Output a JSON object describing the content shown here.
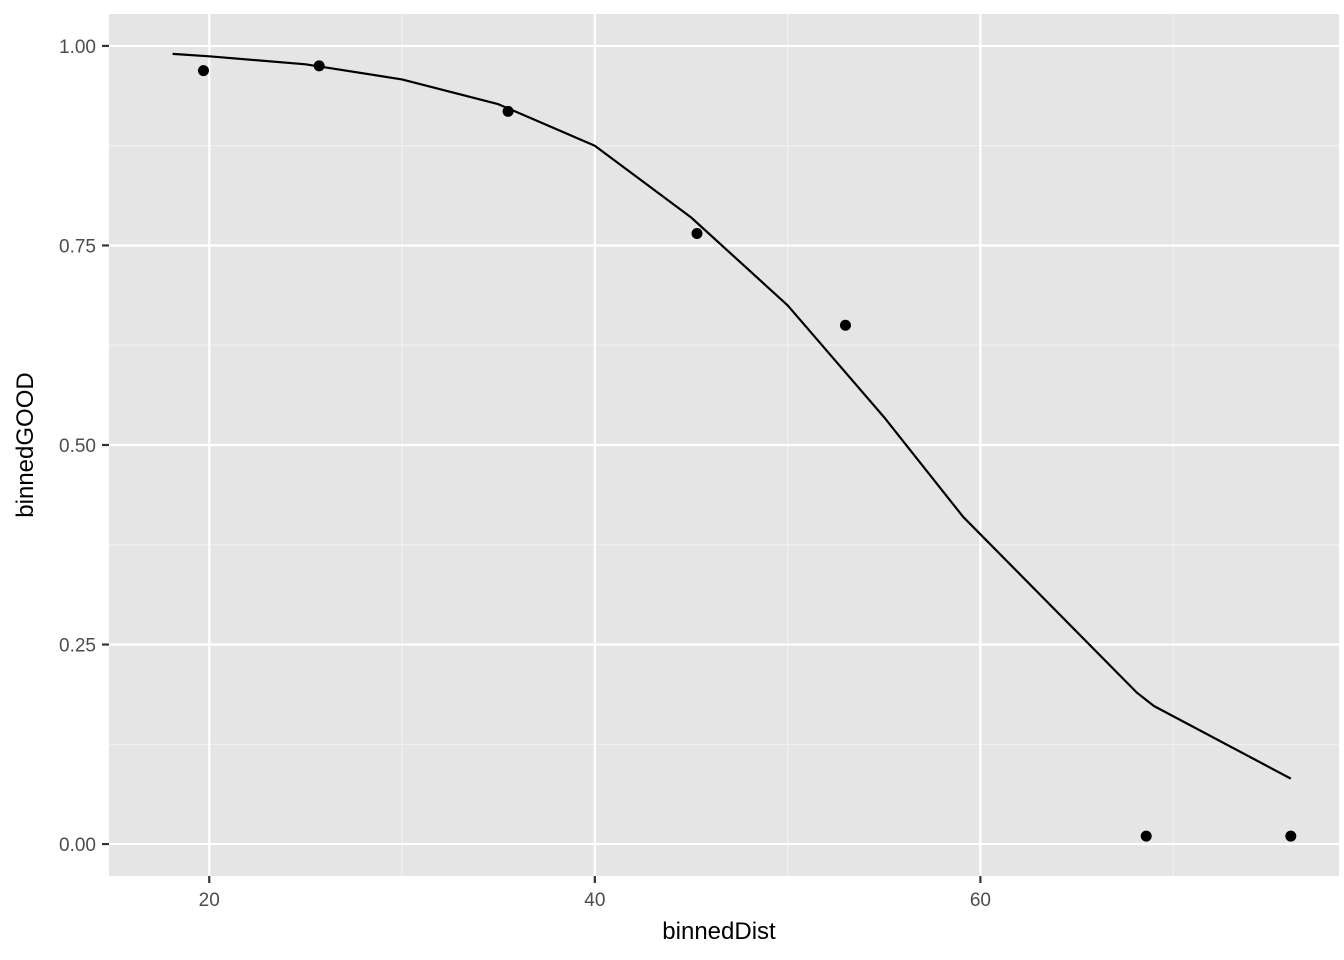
{
  "chart_data": {
    "type": "scatter",
    "title": "",
    "xlabel": "binnedDist",
    "ylabel": "binnedGOOD",
    "xlim": [
      14.8,
      78.6
    ],
    "ylim": [
      -0.04,
      1.04
    ],
    "grid": true,
    "x_ticks": [
      20,
      40,
      60
    ],
    "x_tick_labels": [
      "20",
      "40",
      "60"
    ],
    "x_minor_ticks": [
      30,
      50,
      70
    ],
    "y_ticks": [
      0,
      0.25,
      0.5,
      0.75,
      1.0
    ],
    "y_tick_labels": [
      "0.00",
      "0.25",
      "0.50",
      "0.75",
      "1.00"
    ],
    "y_minor_ticks": [
      0.125,
      0.375,
      0.625,
      0.875
    ],
    "points": {
      "x": [
        19.7,
        25.7,
        35.5,
        45.3,
        53.0,
        68.6,
        76.1
      ],
      "y": [
        0.969,
        0.975,
        0.918,
        0.765,
        0.65,
        0.01,
        0.01
      ]
    },
    "fit_line": {
      "x": [
        18.1,
        20,
        25,
        30,
        35,
        40,
        45,
        50,
        55,
        59.1,
        68.1,
        69.0,
        76.1
      ],
      "y": [
        0.99,
        0.987,
        0.977,
        0.958,
        0.927,
        0.875,
        0.785,
        0.675,
        0.535,
        0.41,
        0.19,
        0.173,
        0.082
      ]
    },
    "colors": {
      "panel": "#e5e5e5",
      "grid_major": "#ffffff",
      "grid_minor": "#f2f2f2",
      "points": "#000000",
      "line": "#000000",
      "tick": "#333333"
    }
  }
}
